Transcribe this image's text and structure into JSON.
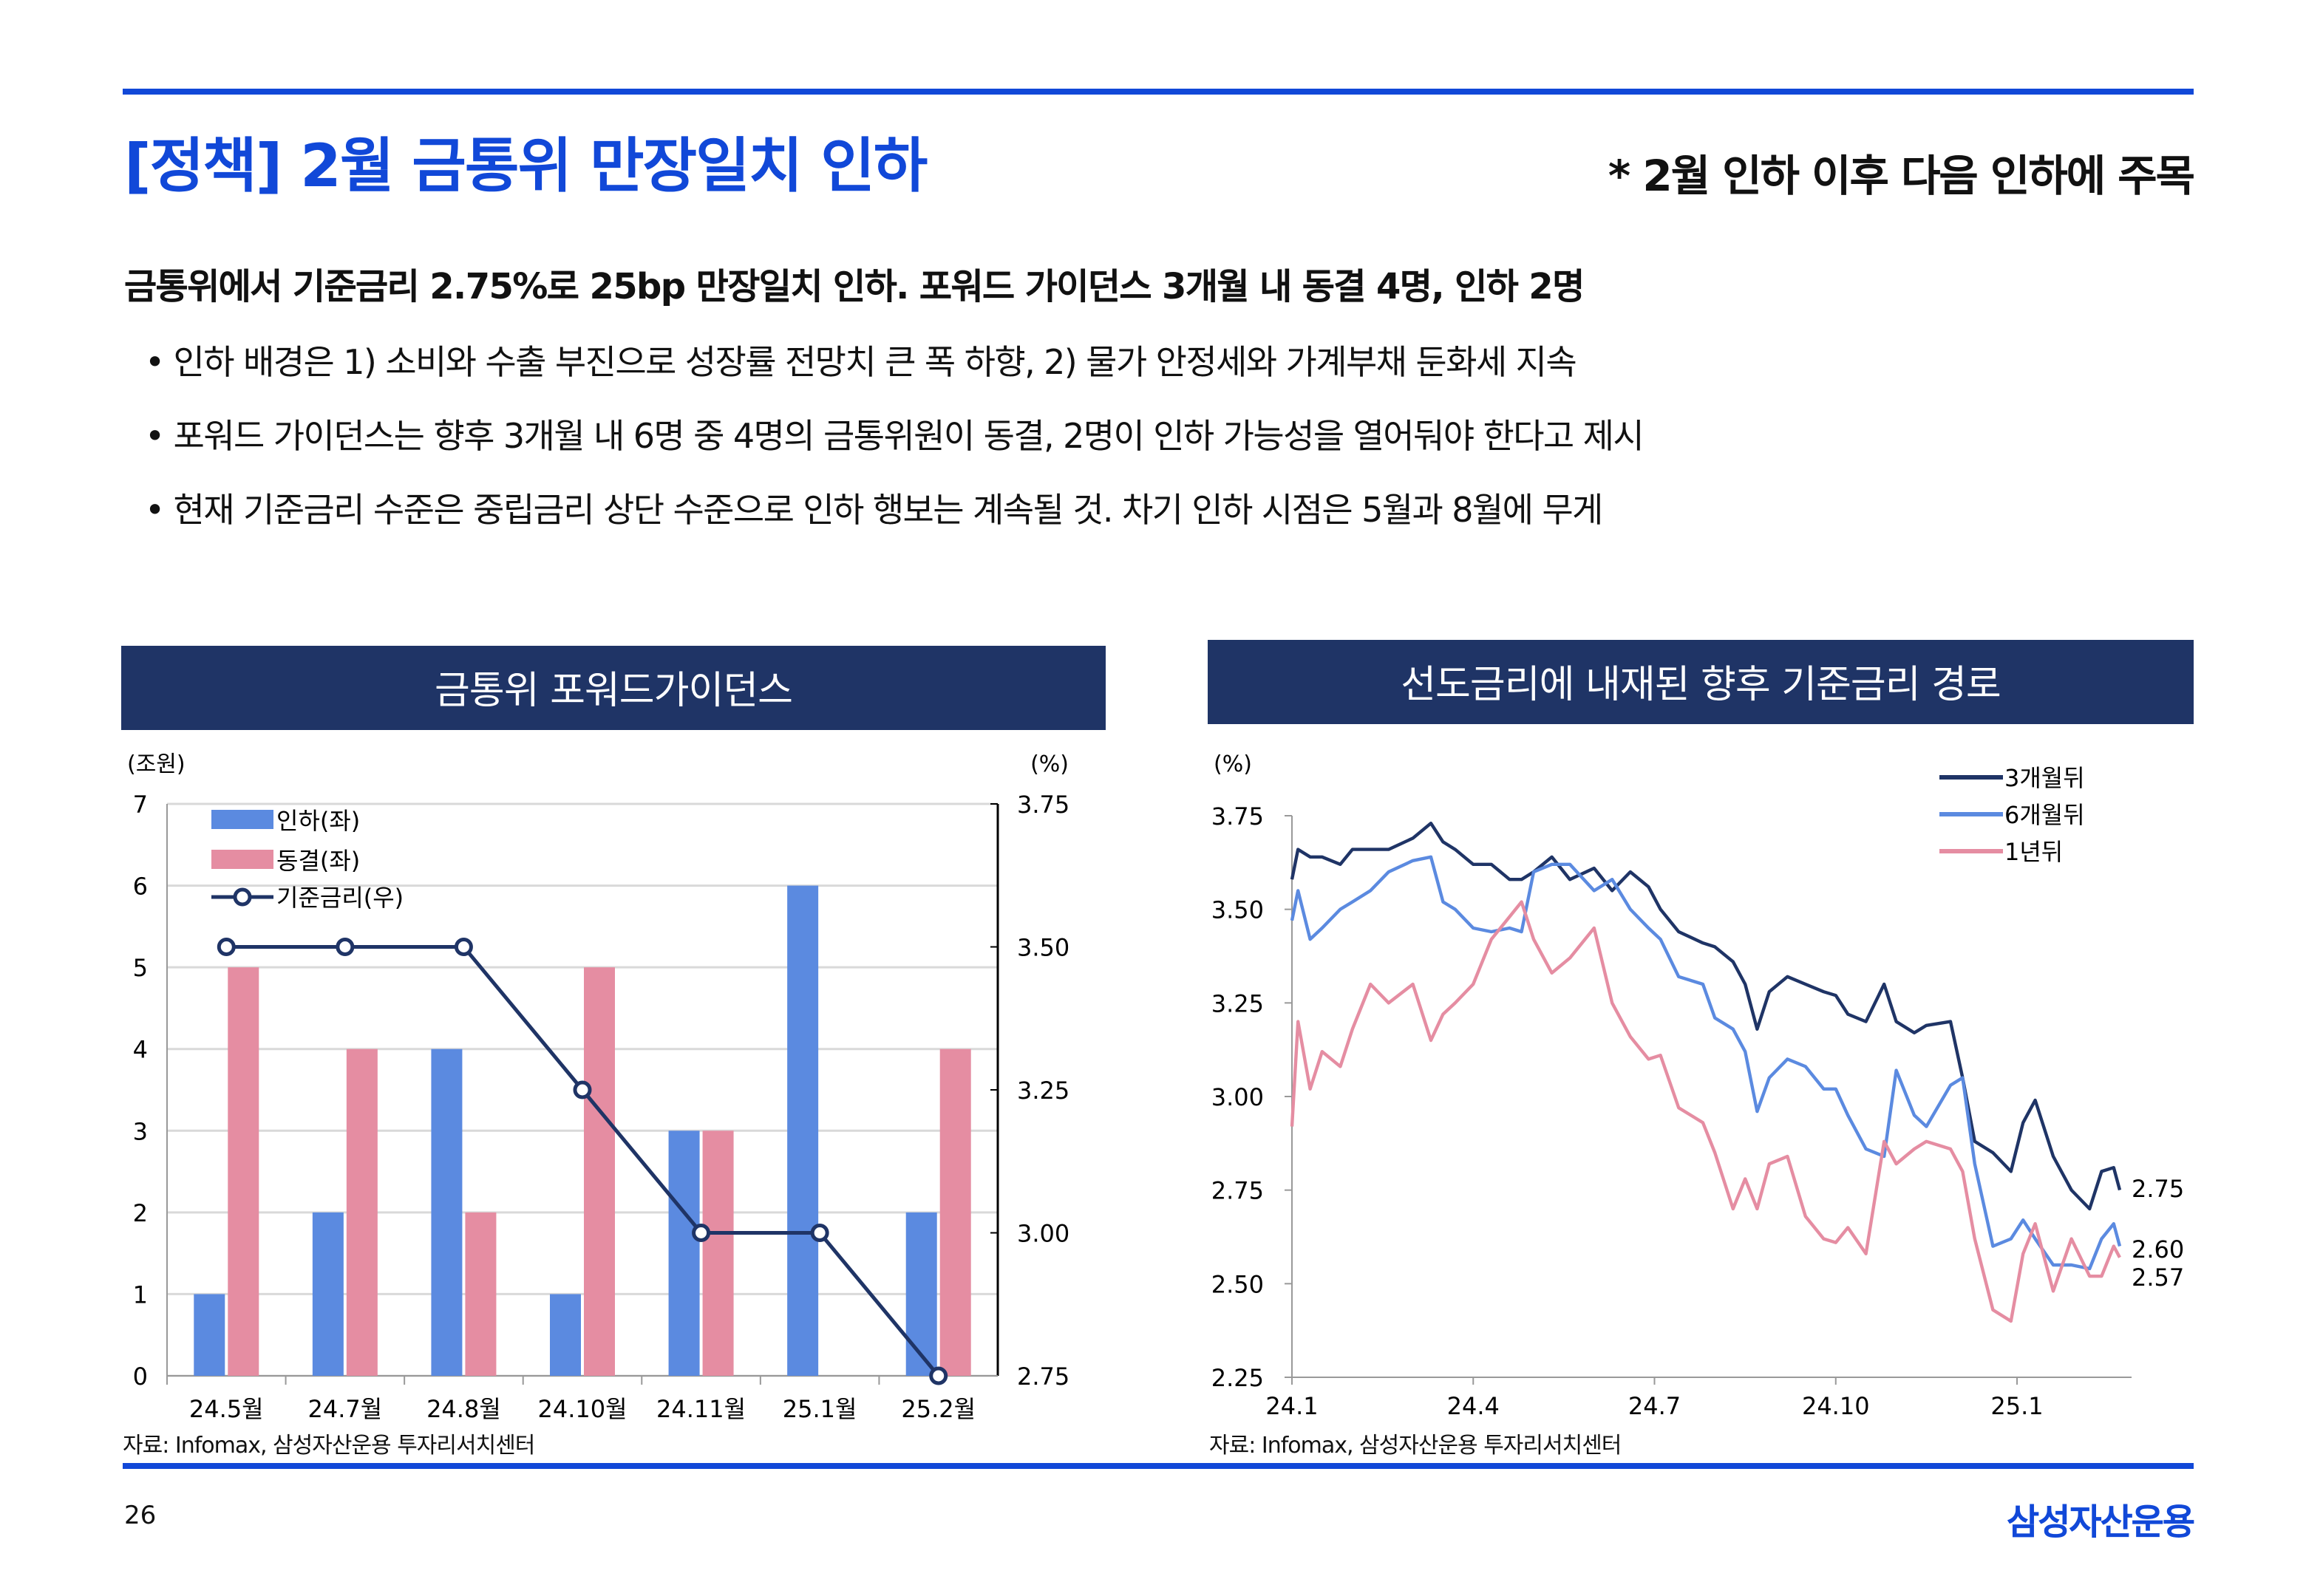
{
  "header": {
    "title": "[정책] 2월 금통위 만장일치 인하",
    "note": "* 2월 인하 이후 다음 인하에 주목"
  },
  "body": {
    "headline": "금통위에서 기준금리 2.75%로 25bp 만장일치 인하. 포워드 가이던스 3개월 내 동결 4명, 인하 2명",
    "bullets": [
      "• 인하 배경은 1) 소비와 수출 부진으로 성장률 전망치 큰 폭 하향, 2) 물가 안정세와 가계부채 둔화세 지속",
      "• 포워드 가이던스는 향후 3개월 내 6명 중 4명의 금통위원이 동결, 2명이 인하 가능성을 열어둬야 한다고 제시",
      "• 현재 기준금리 수준은 중립금리 상단 수준으로 인하 행보는 계속될 것. 차기 인하 시점은 5월과 8월에 무게"
    ]
  },
  "colors": {
    "accent": "#1148d8",
    "navy": "#1f3466",
    "blue": "#5b8ae0",
    "pink": "#e58da2"
  },
  "chart_data": [
    {
      "type": "bar",
      "title": "금통위 포워드가이던스",
      "ylabel_left": "(조원)",
      "ylabel_right": "(%)",
      "categories": [
        "24.5월",
        "24.7월",
        "24.8월",
        "24.10월",
        "24.11월",
        "25.1월",
        "25.2월"
      ],
      "ylim_left": [
        0,
        7
      ],
      "yticks_left": [
        "0",
        "1",
        "2",
        "3",
        "4",
        "5",
        "6",
        "7"
      ],
      "ylim_right": [
        2.75,
        3.75
      ],
      "yticks_right": [
        "2.75",
        "3.00",
        "3.25",
        "3.50",
        "3.75"
      ],
      "series": [
        {
          "name": "인하(좌)",
          "axis": "left",
          "kind": "bar",
          "values": [
            1,
            2,
            4,
            1,
            3,
            6,
            2
          ]
        },
        {
          "name": "동결(좌)",
          "axis": "left",
          "kind": "bar",
          "values": [
            5,
            4,
            2,
            5,
            3,
            0,
            4
          ]
        },
        {
          "name": "기준금리(우)",
          "axis": "right",
          "kind": "line",
          "values": [
            3.5,
            3.5,
            3.5,
            3.25,
            3.0,
            3.0,
            2.75
          ]
        }
      ],
      "grid": true,
      "legend": "top-left",
      "source": "자료: Infomax, 삼성자산운용 투자리서치센터"
    },
    {
      "type": "line",
      "title": "선도금리에 내재된 향후 기준금리 경로",
      "ylabel": "(%)",
      "xticks": [
        "24.1",
        "24.4",
        "24.7",
        "24.10",
        "25.1"
      ],
      "xtick_months": [
        0,
        3,
        6,
        9,
        12
      ],
      "xlim_months": [
        0,
        13.7
      ],
      "ylim": [
        2.25,
        3.75
      ],
      "yticks": [
        "2.25",
        "2.50",
        "2.75",
        "3.00",
        "3.25",
        "3.50",
        "3.75"
      ],
      "end_labels": [
        "2.75",
        "2.60",
        "2.57"
      ],
      "legend": "top-right",
      "source": "자료: Infomax, 삼성자산운용 투자리서치센터",
      "series": [
        {
          "name": "3개월뒤",
          "x": [
            0,
            0.1,
            0.3,
            0.5,
            0.8,
            1,
            1.3,
            1.6,
            2,
            2.3,
            2.5,
            2.7,
            3,
            3.3,
            3.6,
            3.8,
            4,
            4.3,
            4.6,
            5,
            5.3,
            5.6,
            5.9,
            6.1,
            6.4,
            6.8,
            7,
            7.3,
            7.5,
            7.7,
            7.9,
            8.2,
            8.5,
            8.8,
            9,
            9.2,
            9.5,
            9.8,
            10,
            10.3,
            10.5,
            10.9,
            11.1,
            11.3,
            11.6,
            11.9,
            12.1,
            12.3,
            12.6,
            12.9,
            13.2,
            13.4,
            13.6,
            13.7
          ],
          "values": [
            3.58,
            3.66,
            3.64,
            3.64,
            3.62,
            3.66,
            3.66,
            3.66,
            3.69,
            3.73,
            3.68,
            3.66,
            3.62,
            3.62,
            3.58,
            3.58,
            3.6,
            3.64,
            3.58,
            3.61,
            3.55,
            3.6,
            3.56,
            3.5,
            3.44,
            3.41,
            3.4,
            3.36,
            3.3,
            3.18,
            3.28,
            3.32,
            3.3,
            3.28,
            3.27,
            3.22,
            3.2,
            3.3,
            3.2,
            3.17,
            3.19,
            3.2,
            3.05,
            2.88,
            2.85,
            2.8,
            2.93,
            2.99,
            2.84,
            2.75,
            2.7,
            2.8,
            2.81,
            2.75
          ]
        },
        {
          "name": "6개월뒤",
          "x": [
            0,
            0.1,
            0.3,
            0.5,
            0.8,
            1,
            1.3,
            1.6,
            2,
            2.3,
            2.5,
            2.7,
            3,
            3.3,
            3.6,
            3.8,
            4,
            4.3,
            4.6,
            5,
            5.3,
            5.6,
            5.9,
            6.1,
            6.4,
            6.8,
            7,
            7.3,
            7.5,
            7.7,
            7.9,
            8.2,
            8.5,
            8.8,
            9,
            9.2,
            9.5,
            9.8,
            10,
            10.3,
            10.5,
            10.9,
            11.1,
            11.3,
            11.6,
            11.9,
            12.1,
            12.3,
            12.6,
            12.9,
            13.2,
            13.4,
            13.6,
            13.7
          ],
          "values": [
            3.47,
            3.55,
            3.42,
            3.45,
            3.5,
            3.52,
            3.55,
            3.6,
            3.63,
            3.64,
            3.52,
            3.5,
            3.45,
            3.44,
            3.45,
            3.44,
            3.6,
            3.62,
            3.62,
            3.55,
            3.58,
            3.5,
            3.45,
            3.42,
            3.32,
            3.3,
            3.21,
            3.18,
            3.12,
            2.96,
            3.05,
            3.1,
            3.08,
            3.02,
            3.02,
            2.95,
            2.86,
            2.84,
            3.07,
            2.95,
            2.92,
            3.03,
            3.05,
            2.82,
            2.6,
            2.62,
            2.67,
            2.62,
            2.55,
            2.55,
            2.54,
            2.62,
            2.66,
            2.6
          ]
        },
        {
          "name": "1년뒤",
          "x": [
            0,
            0.1,
            0.3,
            0.5,
            0.8,
            1,
            1.3,
            1.6,
            2,
            2.3,
            2.5,
            2.7,
            3,
            3.3,
            3.6,
            3.8,
            4,
            4.3,
            4.6,
            5,
            5.3,
            5.6,
            5.9,
            6.1,
            6.4,
            6.8,
            7,
            7.3,
            7.5,
            7.7,
            7.9,
            8.2,
            8.5,
            8.8,
            9,
            9.2,
            9.5,
            9.8,
            10,
            10.3,
            10.5,
            10.9,
            11.1,
            11.3,
            11.6,
            11.9,
            12.1,
            12.3,
            12.6,
            12.9,
            13.2,
            13.4,
            13.6,
            13.7
          ],
          "values": [
            2.92,
            3.2,
            3.02,
            3.12,
            3.08,
            3.18,
            3.3,
            3.25,
            3.3,
            3.15,
            3.22,
            3.25,
            3.3,
            3.42,
            3.48,
            3.52,
            3.42,
            3.33,
            3.37,
            3.45,
            3.25,
            3.16,
            3.1,
            3.11,
            2.97,
            2.93,
            2.85,
            2.7,
            2.78,
            2.7,
            2.82,
            2.84,
            2.68,
            2.62,
            2.61,
            2.65,
            2.58,
            2.88,
            2.82,
            2.86,
            2.88,
            2.86,
            2.8,
            2.62,
            2.43,
            2.4,
            2.58,
            2.66,
            2.48,
            2.62,
            2.52,
            2.52,
            2.6,
            2.57
          ]
        }
      ]
    }
  ],
  "footer": {
    "page": "26",
    "logo": "삼성자산운용"
  }
}
